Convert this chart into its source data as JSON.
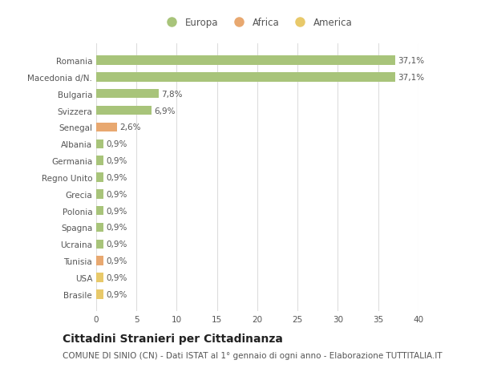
{
  "categories": [
    "Brasile",
    "USA",
    "Tunisia",
    "Ucraina",
    "Spagna",
    "Polonia",
    "Grecia",
    "Regno Unito",
    "Germania",
    "Albania",
    "Senegal",
    "Svizzera",
    "Bulgaria",
    "Macedonia d/N.",
    "Romania"
  ],
  "values": [
    0.9,
    0.9,
    0.9,
    0.9,
    0.9,
    0.9,
    0.9,
    0.9,
    0.9,
    0.9,
    2.6,
    6.9,
    7.8,
    37.1,
    37.1
  ],
  "labels": [
    "0,9%",
    "0,9%",
    "0,9%",
    "0,9%",
    "0,9%",
    "0,9%",
    "0,9%",
    "0,9%",
    "0,9%",
    "0,9%",
    "2,6%",
    "6,9%",
    "7,8%",
    "37,1%",
    "37,1%"
  ],
  "colors": [
    "#e8c96a",
    "#e8c96a",
    "#e8a870",
    "#a8c47a",
    "#a8c47a",
    "#a8c47a",
    "#a8c47a",
    "#a8c47a",
    "#a8c47a",
    "#a8c47a",
    "#e8a870",
    "#a8c47a",
    "#a8c47a",
    "#a8c47a",
    "#a8c47a"
  ],
  "legend_labels": [
    "Europa",
    "Africa",
    "America"
  ],
  "legend_colors": [
    "#a8c47a",
    "#e8a870",
    "#e8c96a"
  ],
  "title": "Cittadini Stranieri per Cittadinanza",
  "subtitle": "COMUNE DI SINIO (CN) - Dati ISTAT al 1° gennaio di ogni anno - Elaborazione TUTTITALIA.IT",
  "xlim": [
    0,
    40
  ],
  "xticks": [
    0,
    5,
    10,
    15,
    20,
    25,
    30,
    35,
    40
  ],
  "background_color": "#ffffff",
  "plot_bg_color": "#ffffff",
  "grid_color": "#dddddd",
  "bar_height": 0.55,
  "title_fontsize": 10,
  "subtitle_fontsize": 7.5,
  "label_fontsize": 7.5,
  "tick_fontsize": 7.5,
  "legend_fontsize": 8.5
}
